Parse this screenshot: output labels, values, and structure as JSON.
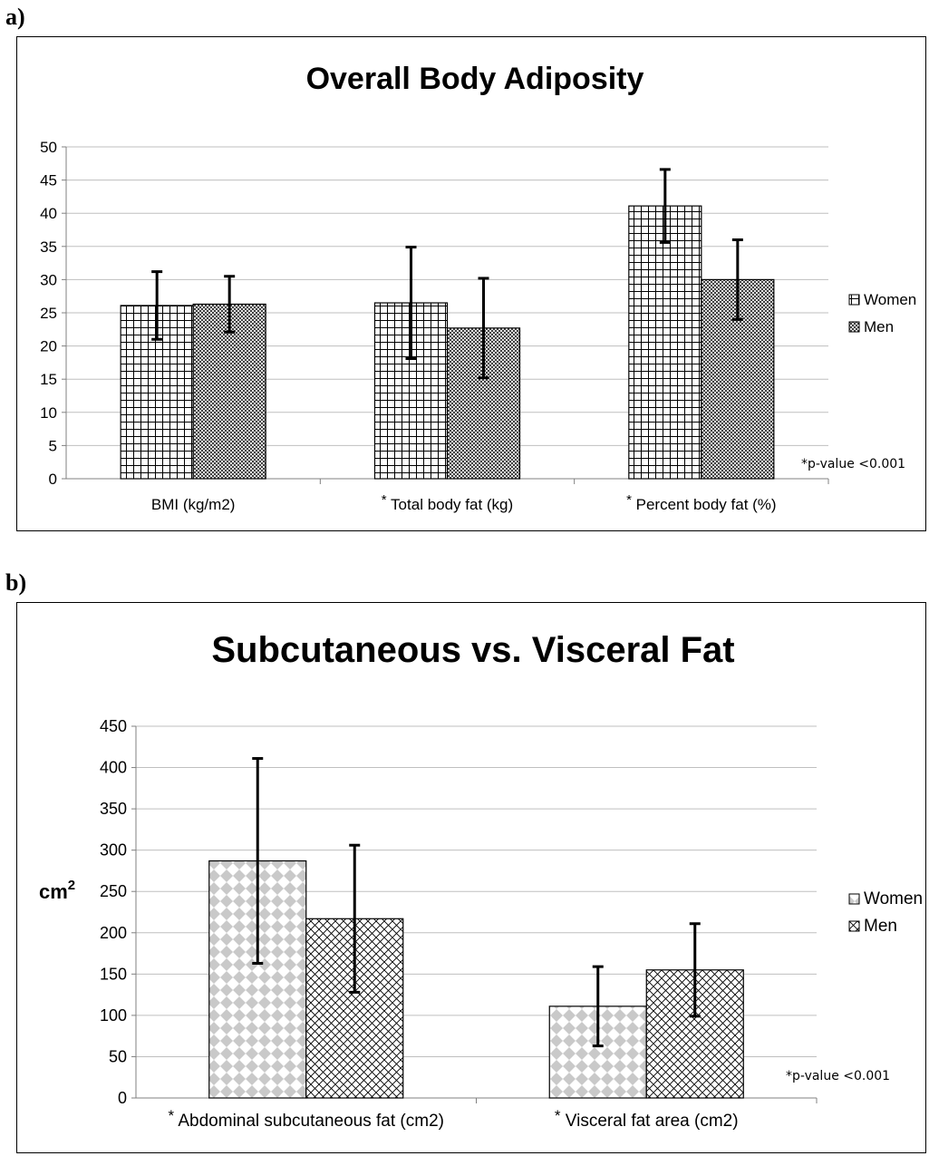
{
  "figure": {
    "panel_a_label": "a)",
    "panel_b_label": "b)"
  },
  "chart_data": [
    {
      "type": "bar",
      "title": "Overall Body Adiposity",
      "xlabel": "",
      "ylabel": "",
      "ylim": [
        0,
        50
      ],
      "yticks": [
        0,
        5,
        10,
        15,
        20,
        25,
        30,
        35,
        40,
        45,
        50
      ],
      "grid": true,
      "legend_position": "right",
      "categories": [
        "BMI (kg/m2)",
        "Total body fat (kg)",
        "Percent body fat (%)"
      ],
      "category_markers": [
        "",
        "*",
        "*"
      ],
      "series": [
        {
          "name": "Women",
          "values": [
            26.1,
            26.5,
            41.1
          ],
          "errors": [
            5.1,
            8.4,
            5.5
          ]
        },
        {
          "name": "Men",
          "values": [
            26.3,
            22.7,
            30.0
          ],
          "errors": [
            4.2,
            7.5,
            6.0
          ]
        }
      ],
      "annotation": "*p-value <0.001"
    },
    {
      "type": "bar",
      "title": "Subcutaneous vs. Visceral Fat",
      "xlabel": "",
      "ylabel": "cm",
      "ylabel_superscript": "2",
      "ylim": [
        0,
        450
      ],
      "yticks": [
        0,
        50,
        100,
        150,
        200,
        250,
        300,
        350,
        400,
        450
      ],
      "grid": true,
      "legend_position": "right",
      "categories": [
        "Abdominal subcutaneous fat (cm2)",
        "Visceral fat area (cm2)"
      ],
      "category_markers": [
        "*",
        "*"
      ],
      "series": [
        {
          "name": "Women",
          "values": [
            287,
            111
          ],
          "errors": [
            124,
            48
          ]
        },
        {
          "name": "Men",
          "values": [
            217,
            155
          ],
          "errors": [
            89,
            56
          ]
        }
      ],
      "annotation": "*p-value <0.001"
    }
  ]
}
